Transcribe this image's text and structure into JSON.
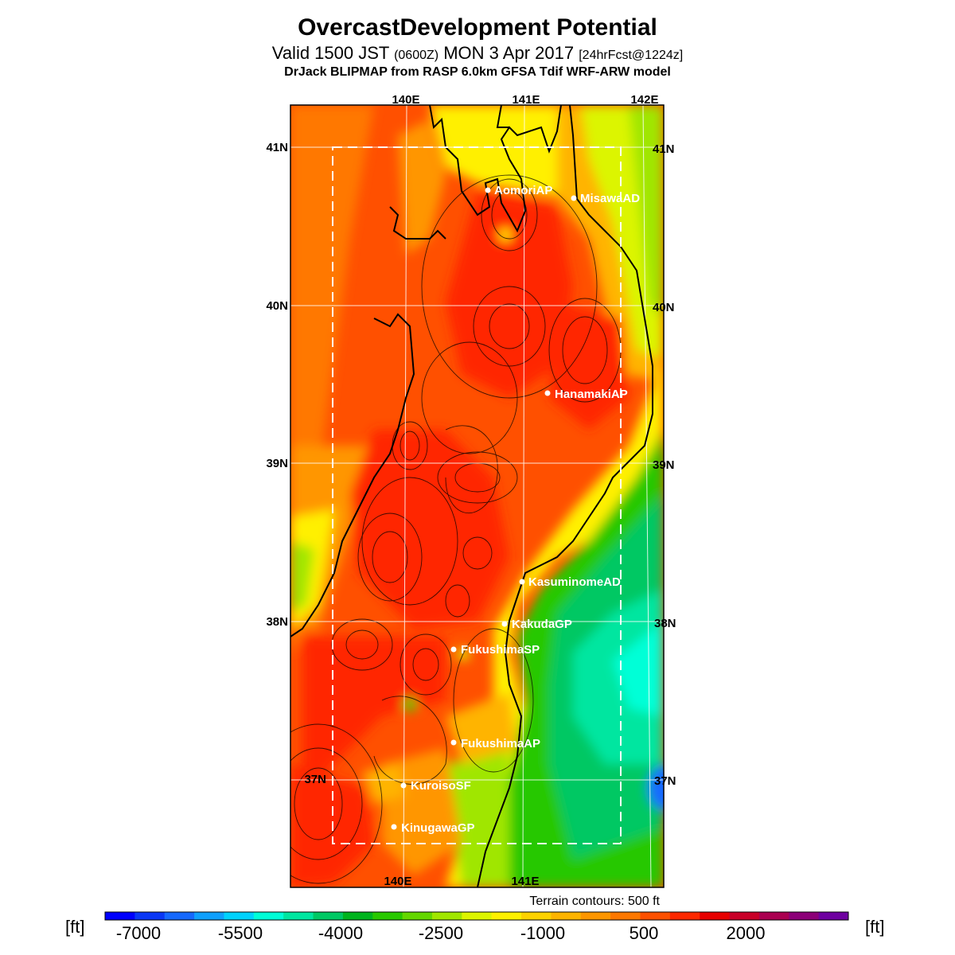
{
  "header": {
    "title": "OvercastDevelopment Potential",
    "valid_prefix": "Valid 1500 JST",
    "valid_utc": "(0600Z)",
    "valid_date": "MON 3 Apr 2017",
    "forecast": "[24hrFcst@1224z]",
    "model_line": "DrJack BLIPMAP from RASP 6.0km GFSA Tdif WRF-ARW model"
  },
  "map": {
    "lon_labels_top": [
      "140E",
      "141E",
      "142E"
    ],
    "lon_labels_bottom": [
      "140E",
      "141E"
    ],
    "lat_labels_left": [
      "41N",
      "40N",
      "39N",
      "38N",
      "37N"
    ],
    "lat_labels_right": [
      "41N",
      "40N",
      "39N",
      "38N",
      "37N"
    ],
    "stations": [
      {
        "name": "AomoriAP"
      },
      {
        "name": "MisawaAD"
      },
      {
        "name": "HanamakiAP"
      },
      {
        "name": "KasuminomeAD"
      },
      {
        "name": "KakudaGP"
      },
      {
        "name": "FukushimaSP"
      },
      {
        "name": "FukushimaAP"
      },
      {
        "name": "KuroisoSF"
      },
      {
        "name": "KinugawaGP"
      }
    ],
    "terrain_note": "Terrain contours: 500 ft"
  },
  "colorbar": {
    "unit_left": "[ft]",
    "unit_right": "[ft]",
    "tick_labels": [
      "-7000",
      "-5500",
      "-4000",
      "-2500",
      "-1000",
      "500",
      "2000"
    ],
    "colors": [
      "#0000ff",
      "#0a37f5",
      "#1669ff",
      "#0fa0ff",
      "#00d2ff",
      "#00ffd7",
      "#00e6a0",
      "#00c864",
      "#00b41e",
      "#28c800",
      "#64d700",
      "#a0e600",
      "#dcf500",
      "#fff000",
      "#ffd200",
      "#ffb400",
      "#ff9600",
      "#ff7800",
      "#ff5000",
      "#ff2800",
      "#e60000",
      "#c80028",
      "#aa0050",
      "#8c0078",
      "#6e00a0"
    ]
  },
  "field_colors": {
    "dark_red": "#ff2800",
    "red": "#ff5000",
    "orange_red": "#ff7800",
    "orange": "#ff9600",
    "light_orange": "#ffb400",
    "yellow": "#fff000",
    "yellow_green": "#dcf500",
    "lime": "#a0e600",
    "green": "#28c800",
    "sea_green": "#00c864",
    "aqua": "#00e6a0",
    "cyan": "#00ffd7",
    "blue": "#1669ff"
  }
}
